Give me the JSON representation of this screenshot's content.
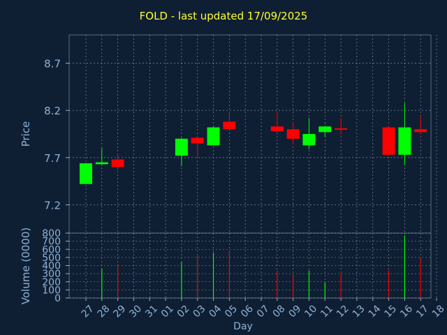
{
  "title": "FOLD - last updated 17/09/2025",
  "colors": {
    "background": "#0f1f33",
    "up": "#00ff00",
    "down": "#ff0000",
    "axis": "#8fb3d6",
    "title": "#ffff33",
    "grid": "#ffffff"
  },
  "chart_data": [
    {
      "type": "candlestick",
      "ylabel": "Price",
      "ylim": [
        6.9,
        9.0
      ],
      "yticks": [
        7.2,
        7.7,
        8.2,
        8.7
      ],
      "grid": true,
      "candles": [
        {
          "x": "27",
          "open": 7.42,
          "high": 7.64,
          "low": 7.42,
          "close": 7.64
        },
        {
          "x": "28",
          "open": 7.63,
          "high": 7.8,
          "low": 7.62,
          "close": 7.65
        },
        {
          "x": "29",
          "open": 7.68,
          "high": 7.74,
          "low": 7.57,
          "close": 7.6
        },
        {
          "x": "02",
          "open": 7.72,
          "high": 7.91,
          "low": 7.61,
          "close": 7.9
        },
        {
          "x": "03",
          "open": 7.91,
          "high": 7.93,
          "low": 7.7,
          "close": 7.85
        },
        {
          "x": "04",
          "open": 7.83,
          "high": 8.03,
          "low": 7.83,
          "close": 8.02
        },
        {
          "x": "05",
          "open": 8.08,
          "high": 8.18,
          "low": 8.0,
          "close": 8.0
        },
        {
          "x": "08",
          "open": 8.03,
          "high": 8.19,
          "low": 7.97,
          "close": 7.98
        },
        {
          "x": "09",
          "open": 8.0,
          "high": 8.07,
          "low": 7.84,
          "close": 7.9
        },
        {
          "x": "10",
          "open": 7.83,
          "high": 8.12,
          "low": 7.79,
          "close": 7.95
        },
        {
          "x": "11",
          "open": 7.97,
          "high": 8.03,
          "low": 7.92,
          "close": 8.03
        },
        {
          "x": "12",
          "open": 8.01,
          "high": 8.12,
          "low": 7.94,
          "close": 8.0
        },
        {
          "x": "15",
          "open": 8.02,
          "high": 8.04,
          "low": 7.73,
          "close": 7.73
        },
        {
          "x": "16",
          "open": 7.73,
          "high": 8.28,
          "low": 7.62,
          "close": 8.02
        },
        {
          "x": "17",
          "open": 8.0,
          "high": 8.14,
          "low": 7.95,
          "close": 7.97
        }
      ]
    },
    {
      "type": "bar",
      "ylabel": "Volume (0000)",
      "xlabel": "Day",
      "ylim": [
        0,
        800
      ],
      "yticks": [
        0,
        100,
        200,
        300,
        400,
        500,
        600,
        700,
        800
      ],
      "categories": [
        "27",
        "28",
        "29",
        "30",
        "31",
        "01",
        "02",
        "03",
        "04",
        "05",
        "06",
        "07",
        "08",
        "09",
        "10",
        "11",
        "12",
        "13",
        "14",
        "15",
        "16",
        "17",
        "18"
      ],
      "values": [
        null,
        360,
        420,
        null,
        null,
        null,
        440,
        530,
        560,
        570,
        null,
        null,
        340,
        290,
        340,
        190,
        300,
        null,
        null,
        340,
        770,
        490,
        null
      ]
    }
  ]
}
